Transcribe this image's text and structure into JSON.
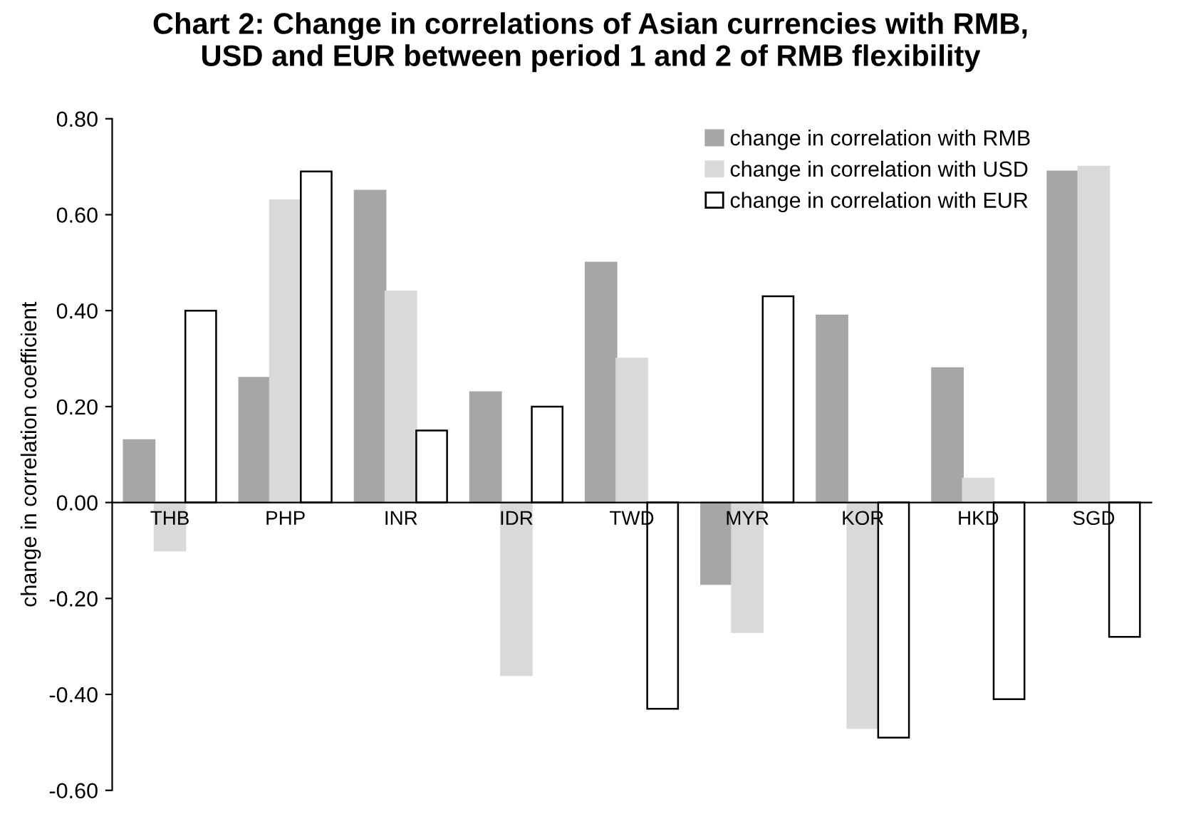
{
  "chart_data": {
    "type": "bar",
    "title": "Chart 2: Change in correlations of Asian currencies with RMB,\nUSD and EUR between period 1 and 2 of RMB flexibility",
    "ylabel": "change in correlation coefficient",
    "categories": [
      "THB",
      "PHP",
      "INR",
      "IDR",
      "TWD",
      "MYR",
      "KOR",
      "HKD",
      "SGD"
    ],
    "series": [
      {
        "name": "change in correlation with RMB",
        "color": "#a6a6a6",
        "values": [
          0.13,
          0.26,
          0.65,
          0.23,
          0.5,
          -0.17,
          0.39,
          0.28,
          0.69
        ]
      },
      {
        "name": "change in correlation with USD",
        "color": "#d9d9d9",
        "values": [
          -0.1,
          0.63,
          0.44,
          -0.36,
          0.3,
          -0.27,
          -0.47,
          0.05,
          0.7
        ]
      },
      {
        "name": "change in correlation with EUR",
        "color": "#ffffff",
        "values": [
          0.4,
          0.69,
          0.15,
          0.2,
          -0.43,
          0.43,
          -0.49,
          -0.41,
          -0.28
        ]
      }
    ],
    "ylim": [
      -0.6,
      0.8
    ],
    "yticks": [
      {
        "value": -0.6,
        "label": "-0.60"
      },
      {
        "value": -0.4,
        "label": "-0.40"
      },
      {
        "value": -0.2,
        "label": "-0.20"
      },
      {
        "value": 0,
        "label": "0.00"
      },
      {
        "value": 0.2,
        "label": "0.20"
      },
      {
        "value": 0.4,
        "label": "0.40"
      },
      {
        "value": 0.6,
        "label": "0.60"
      },
      {
        "value": 0.8,
        "label": "0.80"
      }
    ],
    "grid": false,
    "legend": "top right"
  }
}
